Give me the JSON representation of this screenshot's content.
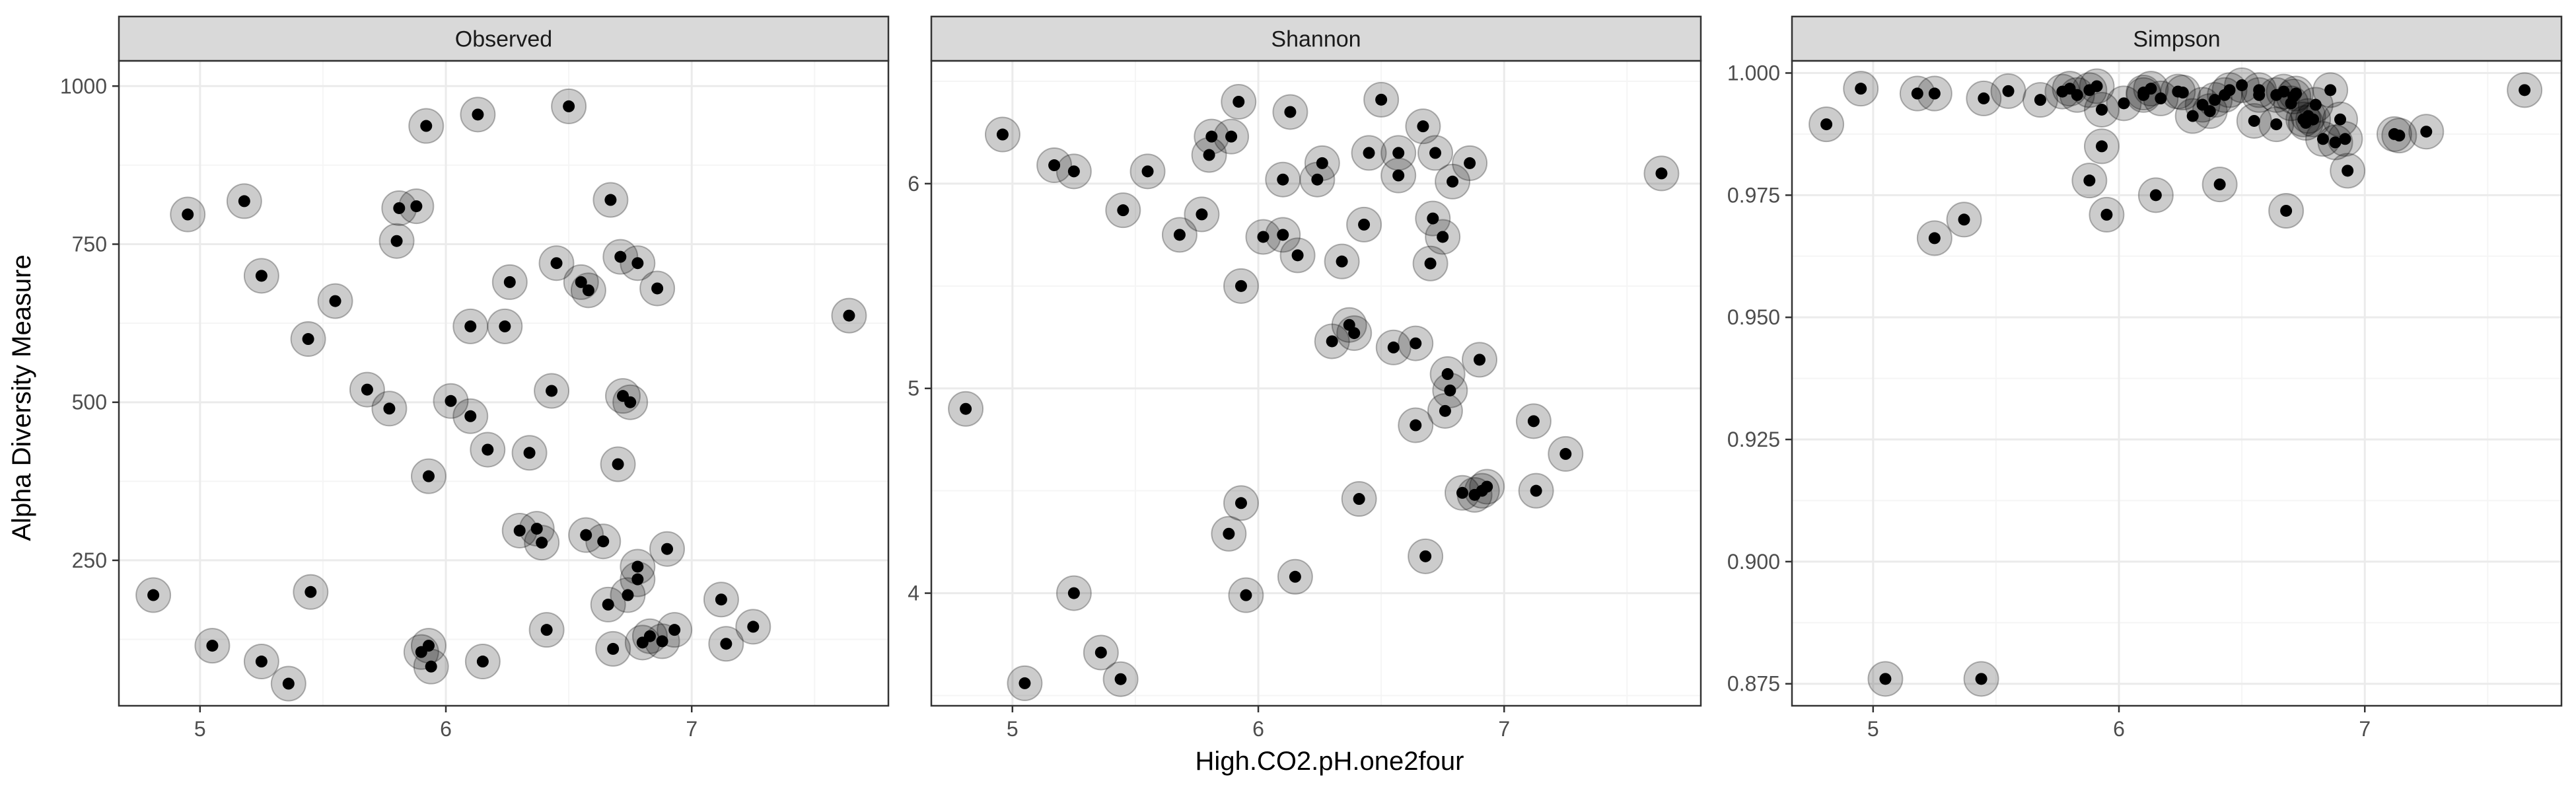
{
  "figure": {
    "ylabel": "Alpha Diversity Measure",
    "xlabel": "High.CO2.pH.one2four"
  },
  "colors": {
    "point": "#000000",
    "halo": "rgba(0,0,0,0.2)",
    "strip": "#d9d9d9",
    "grid_major": "#ebebeb",
    "grid_minor": "#f5f5f5",
    "border": "#333333"
  },
  "chart_data": [
    {
      "type": "scatter",
      "title": "Observed",
      "xlim": [
        4.67,
        7.8
      ],
      "ylim": [
        20,
        1040
      ],
      "xticks": [
        5,
        6,
        7
      ],
      "xtick_labels": [
        "5",
        "6",
        "7"
      ],
      "yticks": [
        250,
        500,
        750,
        1000
      ],
      "ytick_labels": [
        "250",
        "500",
        "750",
        "1000"
      ],
      "grid": true,
      "points": [
        [
          4.81,
          195
        ],
        [
          4.95,
          797
        ],
        [
          5.05,
          115
        ],
        [
          5.18,
          818
        ],
        [
          5.25,
          90
        ],
        [
          5.25,
          700
        ],
        [
          5.36,
          55
        ],
        [
          5.44,
          600
        ],
        [
          5.45,
          200
        ],
        [
          5.55,
          660
        ],
        [
          5.68,
          520
        ],
        [
          5.77,
          490
        ],
        [
          5.8,
          755
        ],
        [
          5.81,
          807
        ],
        [
          5.88,
          810
        ],
        [
          5.9,
          105
        ],
        [
          5.92,
          937
        ],
        [
          5.93,
          115
        ],
        [
          5.93,
          383
        ],
        [
          5.94,
          82
        ],
        [
          6.02,
          502
        ],
        [
          6.1,
          478
        ],
        [
          6.1,
          620
        ],
        [
          6.13,
          955
        ],
        [
          6.15,
          90
        ],
        [
          6.17,
          425
        ],
        [
          6.24,
          620
        ],
        [
          6.26,
          690
        ],
        [
          6.3,
          297
        ],
        [
          6.34,
          420
        ],
        [
          6.37,
          300
        ],
        [
          6.39,
          278
        ],
        [
          6.41,
          140
        ],
        [
          6.43,
          518
        ],
        [
          6.45,
          720
        ],
        [
          6.5,
          968
        ],
        [
          6.55,
          690
        ],
        [
          6.57,
          290
        ],
        [
          6.58,
          677
        ],
        [
          6.64,
          280
        ],
        [
          6.66,
          180
        ],
        [
          6.67,
          820
        ],
        [
          6.68,
          110
        ],
        [
          6.7,
          402
        ],
        [
          6.71,
          730
        ],
        [
          6.72,
          510
        ],
        [
          6.74,
          195
        ],
        [
          6.75,
          500
        ],
        [
          6.78,
          720
        ],
        [
          6.78,
          240
        ],
        [
          6.78,
          220
        ],
        [
          6.8,
          120
        ],
        [
          6.83,
          130
        ],
        [
          6.86,
          680
        ],
        [
          6.88,
          122
        ],
        [
          6.9,
          268
        ],
        [
          6.93,
          140
        ],
        [
          7.12,
          188
        ],
        [
          7.14,
          118
        ],
        [
          7.25,
          145
        ],
        [
          7.64,
          637
        ]
      ]
    },
    {
      "type": "scatter",
      "title": "Shannon",
      "xlim": [
        4.67,
        7.8
      ],
      "ylim": [
        3.45,
        6.6
      ],
      "xticks": [
        5,
        6,
        7
      ],
      "xtick_labels": [
        "5",
        "6",
        "7"
      ],
      "yticks": [
        4,
        5,
        6
      ],
      "ytick_labels": [
        "4",
        "5",
        "6"
      ],
      "grid": true,
      "points": [
        [
          4.81,
          4.9
        ],
        [
          4.96,
          6.24
        ],
        [
          5.05,
          3.56
        ],
        [
          5.17,
          6.09
        ],
        [
          5.25,
          4.0
        ],
        [
          5.25,
          6.06
        ],
        [
          5.36,
          3.71
        ],
        [
          5.44,
          3.58
        ],
        [
          5.45,
          5.87
        ],
        [
          5.55,
          6.06
        ],
        [
          5.68,
          5.75
        ],
        [
          5.77,
          5.85
        ],
        [
          5.8,
          6.14
        ],
        [
          5.81,
          6.23
        ],
        [
          5.88,
          4.29
        ],
        [
          5.89,
          6.23
        ],
        [
          5.92,
          6.4
        ],
        [
          5.93,
          5.5
        ],
        [
          5.93,
          4.44
        ],
        [
          5.95,
          3.99
        ],
        [
          6.02,
          5.74
        ],
        [
          6.1,
          5.75
        ],
        [
          6.1,
          6.02
        ],
        [
          6.13,
          6.35
        ],
        [
          6.15,
          4.08
        ],
        [
          6.16,
          5.65
        ],
        [
          6.24,
          6.02
        ],
        [
          6.26,
          6.1
        ],
        [
          6.3,
          5.23
        ],
        [
          6.34,
          5.62
        ],
        [
          6.37,
          5.31
        ],
        [
          6.39,
          5.27
        ],
        [
          6.41,
          4.46
        ],
        [
          6.43,
          5.8
        ],
        [
          6.45,
          6.15
        ],
        [
          6.5,
          6.41
        ],
        [
          6.55,
          5.2
        ],
        [
          6.57,
          6.15
        ],
        [
          6.57,
          6.04
        ],
        [
          6.64,
          5.22
        ],
        [
          6.64,
          4.82
        ],
        [
          6.67,
          6.28
        ],
        [
          6.68,
          4.18
        ],
        [
          6.7,
          5.61
        ],
        [
          6.71,
          5.83
        ],
        [
          6.72,
          6.15
        ],
        [
          6.75,
          5.74
        ],
        [
          6.76,
          4.89
        ],
        [
          6.77,
          5.07
        ],
        [
          6.78,
          4.99
        ],
        [
          6.79,
          6.01
        ],
        [
          6.83,
          4.49
        ],
        [
          6.86,
          6.1
        ],
        [
          6.88,
          4.48
        ],
        [
          6.9,
          5.14
        ],
        [
          6.91,
          4.5
        ],
        [
          6.93,
          4.52
        ],
        [
          7.12,
          4.84
        ],
        [
          7.13,
          4.5
        ],
        [
          7.25,
          4.68
        ],
        [
          7.64,
          6.05
        ]
      ]
    },
    {
      "type": "scatter",
      "title": "Simpson",
      "xlim": [
        4.67,
        7.8
      ],
      "ylim": [
        0.8705,
        1.0025
      ],
      "xticks": [
        5,
        6,
        7
      ],
      "xtick_labels": [
        "5",
        "6",
        "7"
      ],
      "yticks": [
        0.875,
        0.9,
        0.925,
        0.95,
        0.975,
        1.0
      ],
      "ytick_labels": [
        "0.875",
        "0.900",
        "0.925",
        "0.950",
        "0.975",
        "1.000"
      ],
      "grid": true,
      "points": [
        [
          4.81,
          0.9895
        ],
        [
          4.95,
          0.9968
        ],
        [
          5.05,
          0.876
        ],
        [
          5.18,
          0.9958
        ],
        [
          5.25,
          0.9662
        ],
        [
          5.25,
          0.9958
        ],
        [
          5.37,
          0.97
        ],
        [
          5.44,
          0.876
        ],
        [
          5.45,
          0.9948
        ],
        [
          5.55,
          0.9963
        ],
        [
          5.68,
          0.9945
        ],
        [
          5.77,
          0.9962
        ],
        [
          5.8,
          0.9968
        ],
        [
          5.83,
          0.9955
        ],
        [
          5.88,
          0.978
        ],
        [
          5.88,
          0.9965
        ],
        [
          5.91,
          0.9973
        ],
        [
          5.93,
          0.9925
        ],
        [
          5.93,
          0.985
        ],
        [
          5.95,
          0.971
        ],
        [
          6.02,
          0.9938
        ],
        [
          6.1,
          0.9955
        ],
        [
          6.1,
          0.996
        ],
        [
          6.13,
          0.9968
        ],
        [
          6.15,
          0.975
        ],
        [
          6.17,
          0.9948
        ],
        [
          6.24,
          0.9962
        ],
        [
          6.26,
          0.996
        ],
        [
          6.3,
          0.9912
        ],
        [
          6.34,
          0.9935
        ],
        [
          6.37,
          0.9922
        ],
        [
          6.39,
          0.9945
        ],
        [
          6.41,
          0.9772
        ],
        [
          6.43,
          0.9955
        ],
        [
          6.45,
          0.9965
        ],
        [
          6.5,
          0.9975
        ],
        [
          6.55,
          0.9902
        ],
        [
          6.57,
          0.9965
        ],
        [
          6.57,
          0.9955
        ],
        [
          6.64,
          0.9955
        ],
        [
          6.64,
          0.9895
        ],
        [
          6.67,
          0.9962
        ],
        [
          6.68,
          0.9718
        ],
        [
          6.7,
          0.9938
        ],
        [
          6.71,
          0.9952
        ],
        [
          6.72,
          0.9958
        ],
        [
          6.75,
          0.9905
        ],
        [
          6.76,
          0.9898
        ],
        [
          6.77,
          0.9912
        ],
        [
          6.79,
          0.9905
        ],
        [
          6.8,
          0.9935
        ],
        [
          6.83,
          0.9865
        ],
        [
          6.86,
          0.9965
        ],
        [
          6.88,
          0.9858
        ],
        [
          6.9,
          0.9905
        ],
        [
          6.92,
          0.9865
        ],
        [
          6.93,
          0.98
        ],
        [
          7.12,
          0.9875
        ],
        [
          7.14,
          0.9872
        ],
        [
          7.25,
          0.988
        ],
        [
          7.65,
          0.9965
        ]
      ]
    }
  ]
}
